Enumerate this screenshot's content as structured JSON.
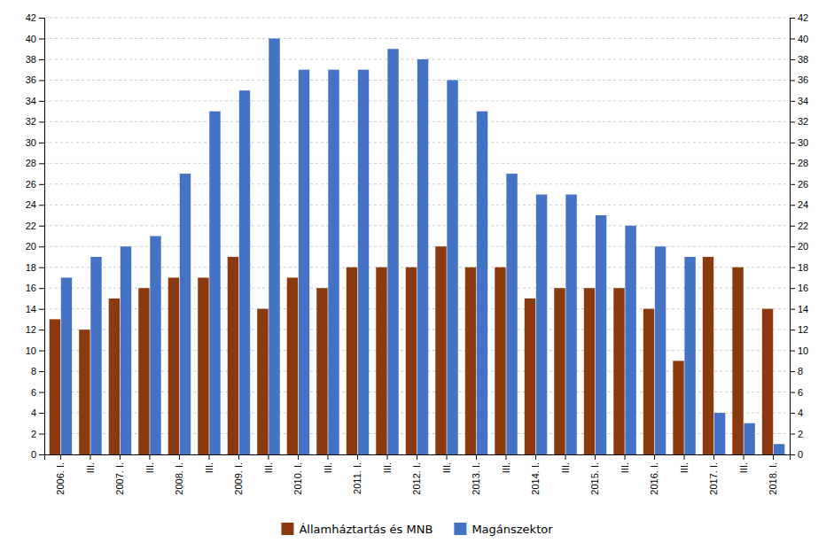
{
  "chart_data": {
    "type": "bar",
    "categories": [
      "2006. I.",
      "III.",
      "2007. I.",
      "III.",
      "2008. I.",
      "III.",
      "2009. I.",
      "III.",
      "2010. I.",
      "III.",
      "2011. I.",
      "III.",
      "2012. I.",
      "III.",
      "2013. I.",
      "III.",
      "2014. I.",
      "III.",
      "2015. I.",
      "III.",
      "2016. I.",
      "III.",
      "2017. I.",
      "III.",
      "2018. I."
    ],
    "series": [
      {
        "name": "Államháztartás és MNB",
        "color": "#8B3A10",
        "values": [
          13,
          12,
          15,
          16,
          17,
          17,
          19,
          14,
          17,
          16,
          18,
          18,
          18,
          20,
          18,
          18,
          15,
          16,
          16,
          16,
          14,
          9,
          19,
          18,
          14
        ]
      },
      {
        "name": "Magánszektor",
        "color": "#4472C4",
        "values": [
          17,
          19,
          20,
          21,
          27,
          33,
          35,
          40,
          37,
          37,
          37,
          39,
          38,
          36,
          33,
          27,
          25,
          25,
          23,
          22,
          20,
          19,
          4,
          3,
          1
        ]
      }
    ],
    "ylim": [
      0,
      42
    ],
    "yticks": [
      0,
      2,
      4,
      6,
      8,
      10,
      12,
      14,
      16,
      18,
      20,
      22,
      24,
      26,
      28,
      30,
      32,
      34,
      36,
      38,
      40,
      42
    ],
    "y2lim": [
      0,
      42
    ],
    "y2ticks": [
      0,
      2,
      4,
      6,
      8,
      10,
      12,
      14,
      16,
      18,
      20,
      22,
      24,
      26,
      28,
      30,
      32,
      34,
      36,
      38,
      40,
      42
    ],
    "grid": true,
    "legend": "bottom"
  }
}
